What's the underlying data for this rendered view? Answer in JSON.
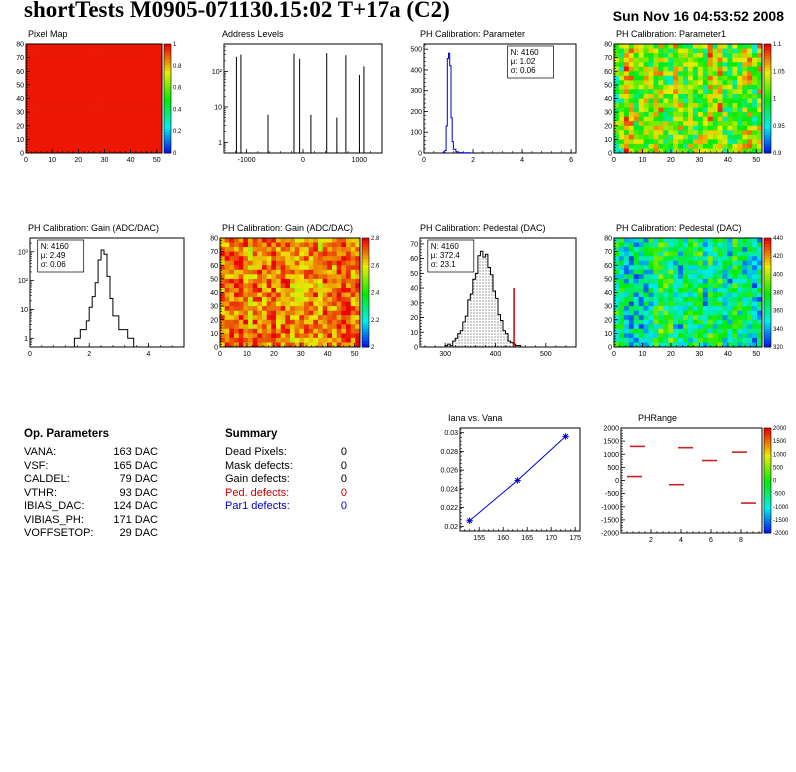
{
  "header": {
    "title": "shortTests M0905-071130.15:02 T+17a (C2)",
    "timestamp": "Sun Nov 16 04:53:52 2008"
  },
  "op_parameters": {
    "title": "Op. Parameters",
    "rows": [
      {
        "label": "VANA:",
        "value": "163 DAC"
      },
      {
        "label": "VSF:",
        "value": "165 DAC"
      },
      {
        "label": "CALDEL:",
        "value": "79 DAC"
      },
      {
        "label": "VTHR:",
        "value": "93 DAC"
      },
      {
        "label": "IBIAS_DAC:",
        "value": "124 DAC"
      },
      {
        "label": "VIBIAS_PH:",
        "value": "171 DAC"
      },
      {
        "label": "VOFFSETOP:",
        "value": "29 DAC"
      }
    ]
  },
  "summary": {
    "title": "Summary",
    "rows": [
      {
        "label": "Dead Pixels:",
        "value": "0",
        "color": "#000000"
      },
      {
        "label": "Mask defects:",
        "value": "0",
        "color": "#000000"
      },
      {
        "label": "Gain defects:",
        "value": "0",
        "color": "#000000"
      },
      {
        "label": "Ped. defects:",
        "value": "0",
        "color": "#cc0000"
      },
      {
        "label": "Par1 defects:",
        "value": "0",
        "color": "#0000cc"
      }
    ]
  },
  "chart_data": [
    {
      "type": "heatmap",
      "title": "Pixel Map",
      "xlim": [
        0,
        52
      ],
      "ylim": [
        0,
        80
      ],
      "xticks": [
        [
          0,
          "0"
        ],
        [
          10,
          "10"
        ],
        [
          20,
          "20"
        ],
        [
          30,
          "30"
        ],
        [
          40,
          "40"
        ],
        [
          50,
          "50"
        ]
      ],
      "yticks": [
        [
          0,
          "0"
        ],
        [
          10,
          "10"
        ],
        [
          20,
          "20"
        ],
        [
          30,
          "30"
        ],
        [
          40,
          "40"
        ],
        [
          50,
          "50"
        ],
        [
          60,
          "60"
        ],
        [
          70,
          "70"
        ],
        [
          80,
          "80"
        ]
      ],
      "noise": {
        "base": 0.98,
        "spread": 0.0,
        "seed": 1,
        "colw": 0
      },
      "zticks": [
        "1",
        "0.8",
        "0.6",
        "0.4",
        "0.2",
        "0"
      ]
    },
    {
      "type": "spikes",
      "title": "Address Levels",
      "xlim": [
        -1400,
        1400
      ],
      "ylim": [
        0.5,
        600
      ],
      "ylog": true,
      "xticks": [
        [
          -1000,
          "-1000"
        ],
        [
          0,
          "0"
        ],
        [
          1000,
          "1000"
        ]
      ],
      "yticks": [
        [
          1,
          "1"
        ],
        [
          10,
          "10"
        ],
        [
          100,
          "10²"
        ]
      ],
      "color": "#000000",
      "spikes": [
        [
          -1180,
          260
        ],
        [
          -1100,
          300
        ],
        [
          -620,
          6
        ],
        [
          -160,
          320
        ],
        [
          -60,
          230
        ],
        [
          140,
          6
        ],
        [
          420,
          330
        ],
        [
          600,
          5
        ],
        [
          760,
          290
        ],
        [
          1000,
          80
        ],
        [
          1080,
          140
        ]
      ]
    },
    {
      "type": "hist",
      "title": "PH Calibration: Parameter",
      "xlim": [
        0,
        6.2
      ],
      "ylim": [
        0,
        525
      ],
      "xticks": [
        [
          0,
          "0"
        ],
        [
          2,
          "2"
        ],
        [
          4,
          "4"
        ],
        [
          6,
          "6"
        ]
      ],
      "yticks": [
        [
          0,
          "0"
        ],
        [
          100,
          "100"
        ],
        [
          200,
          "200"
        ],
        [
          300,
          "300"
        ],
        [
          400,
          "400"
        ],
        [
          500,
          "500"
        ]
      ],
      "color": "#0000cc",
      "binw": 0.05,
      "bins": [
        [
          0.7,
          0
        ],
        [
          0.75,
          1
        ],
        [
          0.8,
          3
        ],
        [
          0.85,
          12
        ],
        [
          0.9,
          130
        ],
        [
          0.95,
          455
        ],
        [
          1.0,
          480
        ],
        [
          1.05,
          420
        ],
        [
          1.1,
          170
        ],
        [
          1.15,
          55
        ],
        [
          1.2,
          18
        ],
        [
          1.3,
          6
        ],
        [
          1.4,
          2
        ],
        [
          1.6,
          1
        ],
        [
          1.9,
          0
        ]
      ],
      "stats": {
        "x": 0.55,
        "lines": [
          [
            "N: 4160",
            "#0000cc"
          ],
          [
            "μ: 1.02",
            "#0000cc"
          ],
          [
            "σ: 0.06",
            "#0000cc"
          ]
        ]
      }
    },
    {
      "type": "heatmap",
      "title": "PH Calibration: Parameter1",
      "xlim": [
        0,
        52
      ],
      "ylim": [
        0,
        80
      ],
      "xticks": [
        [
          0,
          "0"
        ],
        [
          10,
          "10"
        ],
        [
          20,
          "20"
        ],
        [
          30,
          "30"
        ],
        [
          40,
          "40"
        ],
        [
          50,
          "50"
        ]
      ],
      "yticks": [
        [
          0,
          "0"
        ],
        [
          10,
          "10"
        ],
        [
          20,
          "20"
        ],
        [
          30,
          "30"
        ],
        [
          40,
          "40"
        ],
        [
          50,
          "50"
        ],
        [
          60,
          "60"
        ],
        [
          70,
          "70"
        ],
        [
          80,
          "80"
        ]
      ],
      "noise": {
        "base": 0.62,
        "spread": 0.25,
        "seed": 7,
        "colw": 0.5
      },
      "zticks": [
        "1.1",
        "1.05",
        "1",
        "0.95",
        "0.9"
      ]
    },
    {
      "type": "hist",
      "title": "PH Calibration: Gain (ADC/DAC)",
      "xlim": [
        0,
        5.2
      ],
      "ylim": [
        0.5,
        3000
      ],
      "ylog": true,
      "xticks": [
        [
          0,
          "0"
        ],
        [
          2,
          "2"
        ],
        [
          4,
          "4"
        ]
      ],
      "yticks": [
        [
          1,
          "1"
        ],
        [
          10,
          "10"
        ],
        [
          100,
          "10²"
        ],
        [
          1000,
          "10³"
        ]
      ],
      "color": "#000000",
      "binw": 0.1,
      "bins": [
        [
          1.5,
          1
        ],
        [
          1.7,
          2
        ],
        [
          1.9,
          4
        ],
        [
          2.0,
          12
        ],
        [
          2.1,
          28
        ],
        [
          2.2,
          85
        ],
        [
          2.3,
          520
        ],
        [
          2.4,
          1150
        ],
        [
          2.5,
          820
        ],
        [
          2.6,
          140
        ],
        [
          2.7,
          24
        ],
        [
          2.8,
          6
        ],
        [
          3.0,
          2
        ],
        [
          3.3,
          1
        ],
        [
          3.5,
          0
        ]
      ],
      "stats": {
        "x": 0.05,
        "lines": [
          [
            "N: 4160",
            "#000000"
          ],
          [
            "μ: 2.49",
            "#000000"
          ],
          [
            "σ: 0.06",
            "#000000"
          ]
        ]
      }
    },
    {
      "type": "heatmap",
      "title": "PH Calibration: Gain (ADC/DAC)",
      "xlim": [
        0,
        52
      ],
      "ylim": [
        0,
        80
      ],
      "xticks": [
        [
          0,
          "0"
        ],
        [
          10,
          "10"
        ],
        [
          20,
          "20"
        ],
        [
          30,
          "30"
        ],
        [
          40,
          "40"
        ],
        [
          50,
          "50"
        ]
      ],
      "yticks": [
        [
          0,
          "0"
        ],
        [
          10,
          "10"
        ],
        [
          20,
          "20"
        ],
        [
          30,
          "30"
        ],
        [
          40,
          "40"
        ],
        [
          50,
          "50"
        ],
        [
          60,
          "60"
        ],
        [
          70,
          "70"
        ],
        [
          80,
          "80"
        ]
      ],
      "noise": {
        "base": 0.87,
        "spread": 0.13,
        "seed": 11,
        "colw": 0.6
      },
      "zticks": [
        "2.8",
        "2.6",
        "2.4",
        "2.2",
        "2"
      ]
    },
    {
      "type": "hist",
      "title": "PH Calibration: Pedestal (DAC)",
      "xlim": [
        250,
        560
      ],
      "ylim": [
        0,
        74
      ],
      "xticks": [
        [
          300,
          "300"
        ],
        [
          400,
          "400"
        ],
        [
          500,
          "500"
        ]
      ],
      "yticks": [
        [
          0,
          "0"
        ],
        [
          10,
          "10"
        ],
        [
          20,
          "20"
        ],
        [
          30,
          "30"
        ],
        [
          40,
          "40"
        ],
        [
          50,
          "50"
        ],
        [
          60,
          "60"
        ],
        [
          70,
          "70"
        ]
      ],
      "color": "#000000",
      "binw": 5,
      "fill": "dots",
      "bins": [
        [
          300,
          1
        ],
        [
          305,
          2
        ],
        [
          310,
          1
        ],
        [
          315,
          4
        ],
        [
          320,
          6
        ],
        [
          325,
          9
        ],
        [
          330,
          11
        ],
        [
          335,
          17
        ],
        [
          340,
          21
        ],
        [
          345,
          32
        ],
        [
          350,
          36
        ],
        [
          355,
          46
        ],
        [
          360,
          50
        ],
        [
          365,
          62
        ],
        [
          370,
          65
        ],
        [
          375,
          61
        ],
        [
          380,
          63
        ],
        [
          385,
          54
        ],
        [
          390,
          49
        ],
        [
          395,
          38
        ],
        [
          400,
          33
        ],
        [
          405,
          22
        ],
        [
          410,
          18
        ],
        [
          415,
          11
        ],
        [
          420,
          9
        ],
        [
          425,
          4
        ],
        [
          430,
          3
        ],
        [
          435,
          2
        ],
        [
          440,
          1
        ],
        [
          445,
          1
        ]
      ],
      "vline": {
        "x": 437,
        "y": 40,
        "color": "#cc0000"
      },
      "stats": {
        "x": 0.05,
        "lines": [
          [
            "N: 4160",
            "#000000"
          ],
          [
            "μ: 372.4",
            "#cc0000"
          ],
          [
            "σ: 23.1",
            "#cc0000"
          ]
        ]
      }
    },
    {
      "type": "heatmap",
      "title": "PH Calibration: Pedestal (DAC)",
      "xlim": [
        0,
        52
      ],
      "ylim": [
        0,
        80
      ],
      "xticks": [
        [
          0,
          "0"
        ],
        [
          10,
          "10"
        ],
        [
          20,
          "20"
        ],
        [
          30,
          "30"
        ],
        [
          40,
          "40"
        ],
        [
          50,
          "50"
        ]
      ],
      "yticks": [
        [
          0,
          "0"
        ],
        [
          10,
          "10"
        ],
        [
          20,
          "20"
        ],
        [
          30,
          "30"
        ],
        [
          40,
          "40"
        ],
        [
          50,
          "50"
        ],
        [
          60,
          "60"
        ],
        [
          70,
          "70"
        ],
        [
          80,
          "80"
        ]
      ],
      "noise": {
        "base": 0.4,
        "spread": 0.22,
        "seed": 13,
        "colw": 0.6
      },
      "zticks": [
        "440",
        "420",
        "400",
        "380",
        "360",
        "340",
        "320"
      ]
    },
    {
      "type": "line",
      "title": "Iana vs. Vana",
      "xlim": [
        151,
        176
      ],
      "ylim": [
        0.0195,
        0.0305
      ],
      "xticks": [
        [
          155,
          "155"
        ],
        [
          160,
          "160"
        ],
        [
          165,
          "165"
        ],
        [
          170,
          "170"
        ],
        [
          175,
          "175"
        ]
      ],
      "yticks": [
        [
          0.02,
          "0.02"
        ],
        [
          0.022,
          "0.022"
        ],
        [
          0.024,
          "0.024"
        ],
        [
          0.026,
          "0.026"
        ],
        [
          0.028,
          "0.028"
        ],
        [
          0.03,
          "0.03"
        ]
      ],
      "color": "#0000cc",
      "points": [
        [
          153,
          0.0206
        ],
        [
          163,
          0.0249
        ],
        [
          173,
          0.0296
        ]
      ]
    },
    {
      "type": "segments",
      "title": "PHRange",
      "xlim": [
        0,
        9.4
      ],
      "ylim": [
        -2000,
        2000
      ],
      "xticks": [
        [
          2,
          "2"
        ],
        [
          4,
          "4"
        ],
        [
          6,
          "6"
        ],
        [
          8,
          "8"
        ]
      ],
      "yticks": [
        [
          2000,
          "2000"
        ],
        [
          1500,
          "1500"
        ],
        [
          1000,
          "1000"
        ],
        [
          500,
          "500"
        ],
        [
          0,
          "0"
        ],
        [
          -500,
          "-500"
        ],
        [
          -1000,
          "-1000"
        ],
        [
          -1500,
          "-1500"
        ],
        [
          -2000,
          "-2000"
        ]
      ],
      "color": "#cc2222",
      "segments": [
        [
          0.6,
          1.6,
          1300
        ],
        [
          3.8,
          4.8,
          1250
        ],
        [
          5.4,
          6.4,
          760
        ],
        [
          7.4,
          8.4,
          1080
        ],
        [
          0.4,
          1.4,
          150
        ],
        [
          3.2,
          4.2,
          -160
        ],
        [
          8.0,
          9.0,
          -860
        ]
      ],
      "zticks": [
        "2000",
        "1500",
        "1000",
        "500",
        "0",
        "-500",
        "-1000",
        "-1500",
        "-2000"
      ]
    }
  ]
}
